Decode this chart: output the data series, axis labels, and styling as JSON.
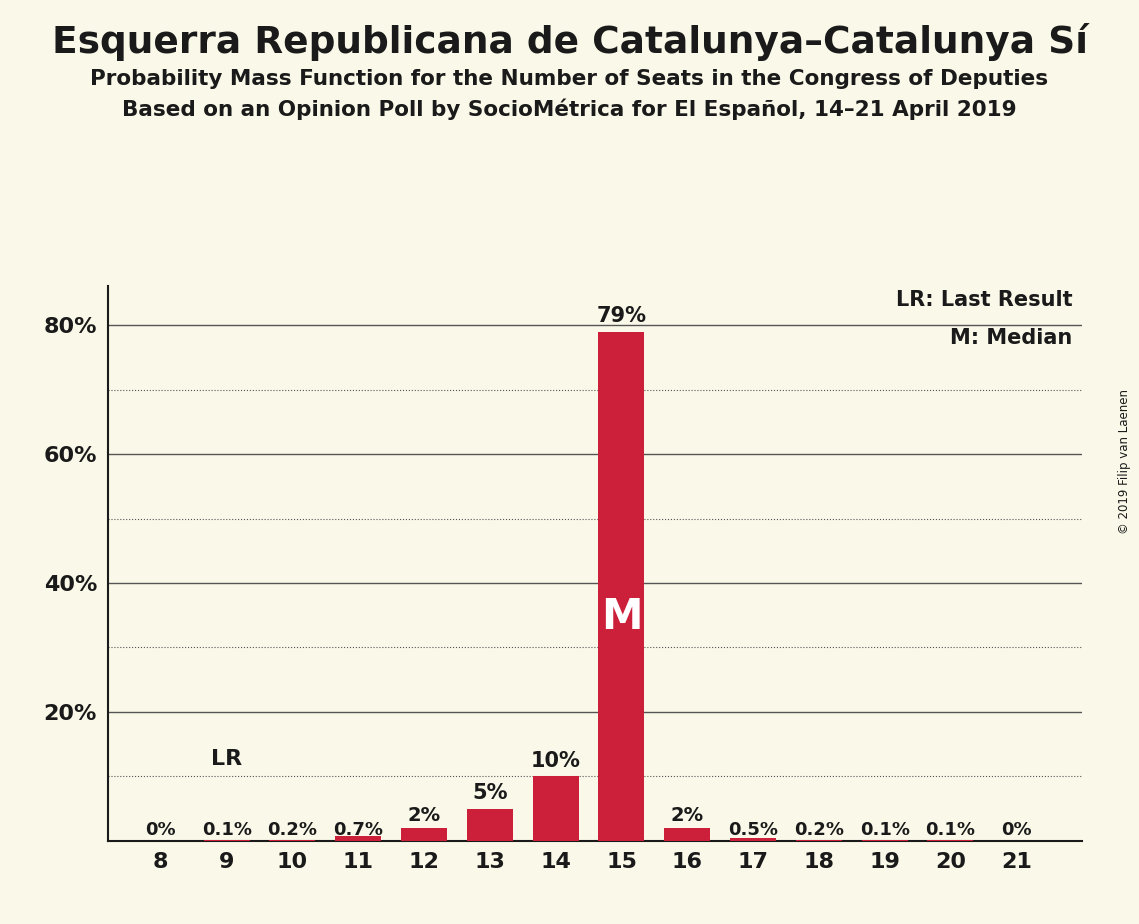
{
  "title": "Esquerra Republicana de Catalunya–Catalunya Sí",
  "subtitle1": "Probability Mass Function for the Number of Seats in the Congress of Deputies",
  "subtitle2": "Based on an Opinion Poll by SocioMétrica for El Español, 14–21 April 2019",
  "copyright": "© 2019 Filip van Laenen",
  "seats": [
    8,
    9,
    10,
    11,
    12,
    13,
    14,
    15,
    16,
    17,
    18,
    19,
    20,
    21
  ],
  "probabilities": [
    0.0,
    0.1,
    0.2,
    0.7,
    2.0,
    5.0,
    10.0,
    79.0,
    2.0,
    0.5,
    0.2,
    0.1,
    0.1,
    0.0
  ],
  "labels": [
    "0%",
    "0.1%",
    "0.2%",
    "0.7%",
    "2%",
    "5%",
    "10%",
    "79%",
    "2%",
    "0.5%",
    "0.2%",
    "0.1%",
    "0.1%",
    "0%"
  ],
  "bar_color": "#cc1f3a",
  "background_color": "#faf8e8",
  "grid_color": "#555555",
  "text_color": "#1a1a1a",
  "median_seat": 15,
  "last_result_seat": 9,
  "ylim": [
    0,
    86
  ],
  "solid_gridlines": [
    20,
    40,
    60,
    80
  ],
  "dotted_gridlines": [
    10,
    30,
    50,
    70
  ],
  "ytick_positions": [
    20,
    40,
    60,
    80
  ],
  "ytick_labels": [
    "20%",
    "40%",
    "60%",
    "80%"
  ],
  "legend_text1": "LR: Last Result",
  "legend_text2": "M: Median"
}
